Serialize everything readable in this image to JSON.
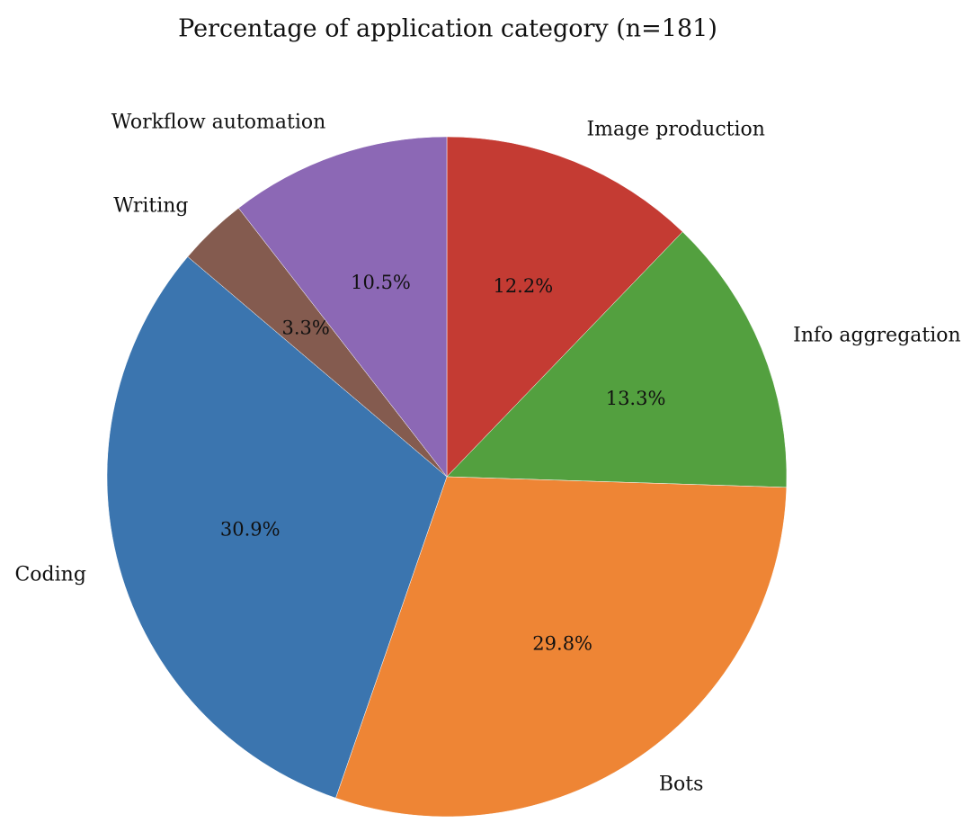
{
  "chart_data": {
    "type": "pie",
    "title": "Percentage of application category (n=181)",
    "categories": [
      "Image production",
      "Info aggregation",
      "Bots",
      "Coding",
      "Writing",
      "Workflow automation"
    ],
    "values": [
      12.2,
      13.3,
      29.8,
      30.9,
      3.3,
      10.5
    ],
    "value_labels": [
      "12.2%",
      "13.3%",
      "29.8%",
      "30.9%",
      "3.3%",
      "10.5%"
    ],
    "colors": [
      "#c43b33",
      "#53a03f",
      "#ee8535",
      "#3b75af",
      "#845b4f",
      "#8c68b5"
    ]
  }
}
